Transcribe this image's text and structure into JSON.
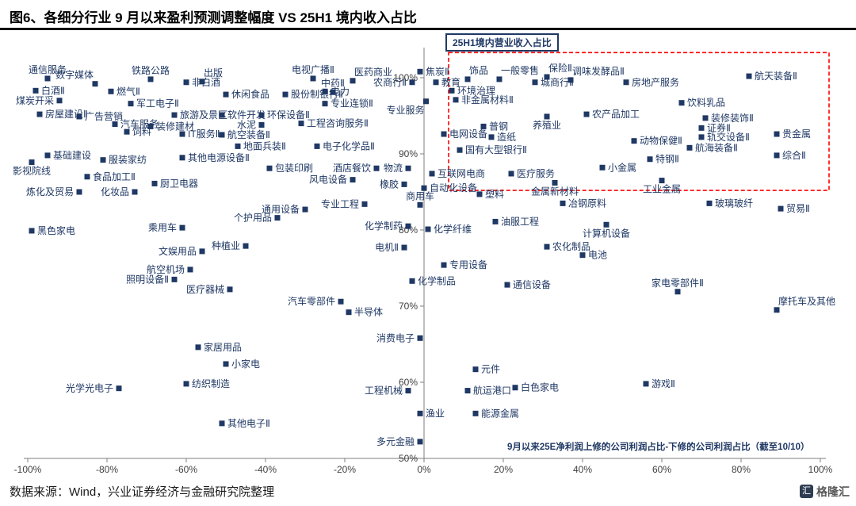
{
  "header": {
    "title": "图6、各细分行业 9 月以来盈利预测调整幅度 VS 25H1 境内收入占比"
  },
  "footer": {
    "source": "数据来源：Wind，兴业证券经济与金融研究院整理",
    "logo_text": "格隆汇",
    "logo_glyph": "汇"
  },
  "chart_data": {
    "type": "scatter",
    "y_axis_title": "25H1境内营业收入占比",
    "x_axis_title": "9月以来25E净利润上修的公司利润占比-下修的公司利润占比（截至10/10）",
    "xlim": [
      -100,
      100
    ],
    "ylim": [
      50,
      101
    ],
    "grid": false,
    "colors": {
      "marker": "#1f3864",
      "label": "#1f3864",
      "axis_text": "#404040",
      "axis_line": "#7f7f7f",
      "highlight_box": "#ff0000"
    },
    "highlight_box": {
      "x_min": 6.2,
      "x_max": 102.2,
      "y_min": 85.2,
      "y_max": 103.3
    },
    "x_ticks": [
      {
        "value": -100,
        "label": "-100%"
      },
      {
        "value": -80,
        "label": "-80%"
      },
      {
        "value": -60,
        "label": "-60%"
      },
      {
        "value": -40,
        "label": "-40%"
      },
      {
        "value": -20,
        "label": "-20%"
      },
      {
        "value": 0,
        "label": "0%"
      },
      {
        "value": 20,
        "label": "20%"
      },
      {
        "value": 40,
        "label": "40%"
      },
      {
        "value": 60,
        "label": "60%"
      },
      {
        "value": 80,
        "label": "80%"
      },
      {
        "value": 100,
        "label": "100%"
      }
    ],
    "y_ticks": [
      {
        "value": 100,
        "label": "100%"
      },
      {
        "value": 90,
        "label": "90%"
      },
      {
        "value": 80,
        "label": "80%"
      },
      {
        "value": 70,
        "label": "70%"
      },
      {
        "value": 60,
        "label": "60%"
      },
      {
        "value": 50,
        "label": "50%"
      }
    ],
    "point_fields": [
      "label",
      "x_pct",
      "y_pct",
      "label_side"
    ],
    "points": [
      [
        "通信服务",
        -95,
        99.9,
        "T"
      ],
      [
        "数字媒体",
        -83,
        99.2,
        "TL"
      ],
      [
        "白酒Ⅱ",
        -98,
        98.3,
        "R"
      ],
      [
        "煤炭开采",
        -92,
        97.0,
        "L"
      ],
      [
        "铁路公路",
        -69,
        99.8,
        "T"
      ],
      [
        "出版",
        -56,
        99.5,
        "TR"
      ],
      [
        "电视广播Ⅱ",
        -28,
        99.9,
        "T"
      ],
      [
        "医药商业",
        -18,
        99.6,
        "TR"
      ],
      [
        "焦炭Ⅱ",
        -1,
        100.8,
        "R"
      ],
      [
        "非白酒",
        -60,
        99.4,
        "R"
      ],
      [
        "农商行Ⅱ",
        -3,
        99.4,
        "L"
      ],
      [
        "燃气Ⅱ",
        -79,
        98.2,
        "R"
      ],
      [
        "中药Ⅱ",
        -23,
        98.1,
        "T"
      ],
      [
        "电力",
        -25,
        98.2,
        "R"
      ],
      [
        "股份制银行Ⅱ",
        -35,
        97.8,
        "R"
      ],
      [
        "休闲食品",
        -50,
        97.8,
        "R"
      ],
      [
        "军工电子Ⅱ",
        -74,
        96.6,
        "R"
      ],
      [
        "专业连锁Ⅱ",
        -25,
        96.6,
        "R"
      ],
      [
        "专业服务",
        0.5,
        96.9,
        "BL"
      ],
      [
        "房屋建设Ⅱ",
        -97,
        95.2,
        "R"
      ],
      [
        "广告营销",
        -87,
        94.9,
        "R"
      ],
      [
        "汽车服务",
        -78,
        93.9,
        "R"
      ],
      [
        "饲料",
        -75,
        92.9,
        "R"
      ],
      [
        "装修建材",
        -69,
        93.6,
        "R"
      ],
      [
        "旅游及景区",
        -63,
        95.1,
        "R"
      ],
      [
        "软件开发",
        -51,
        95.1,
        "R"
      ],
      [
        "环保设备Ⅱ",
        -41,
        95.1,
        "R"
      ],
      [
        "水泥",
        -41,
        93.8,
        "L"
      ],
      [
        "IT服务Ⅱ",
        -61,
        92.6,
        "R"
      ],
      [
        "航空装备Ⅱ",
        -51,
        92.5,
        "R"
      ],
      [
        "工程咨询服务Ⅱ",
        -31,
        94.0,
        "R"
      ],
      [
        "基础建设",
        -95,
        89.8,
        "R"
      ],
      [
        "服装家纺",
        -81,
        89.2,
        "R"
      ],
      [
        "其他电源设备Ⅱ",
        -61,
        89.5,
        "R"
      ],
      [
        "地面兵装Ⅱ",
        -47,
        91.0,
        "R"
      ],
      [
        "电子化学品Ⅱ",
        -27,
        91.0,
        "R"
      ],
      [
        "影视院线",
        -99,
        88.9,
        "B"
      ],
      [
        "食品加工Ⅱ",
        -85,
        87.0,
        "R"
      ],
      [
        "厨卫电器",
        -68,
        86.1,
        "R"
      ],
      [
        "包装印刷",
        -39,
        88.1,
        "R"
      ],
      [
        "酒店餐饮",
        -12,
        88.1,
        "L"
      ],
      [
        "物流",
        -4,
        88.1,
        "L"
      ],
      [
        "炼化及贸易",
        -87,
        85.0,
        "L"
      ],
      [
        "化妆品",
        -73,
        85.0,
        "L"
      ],
      [
        "风电设备",
        -18,
        86.6,
        "L"
      ],
      [
        "橡胶",
        -5,
        86.0,
        "L"
      ],
      [
        "商用车",
        -1,
        83.3,
        "T"
      ],
      [
        "通用设备",
        -30,
        82.7,
        "L"
      ],
      [
        "专业工程",
        -15,
        83.4,
        "L"
      ],
      [
        "黑色家电",
        -99,
        79.9,
        "R"
      ],
      [
        "乘用车",
        -61,
        80.3,
        "L"
      ],
      [
        "个护用品",
        -37,
        81.6,
        "L"
      ],
      [
        "化学制药",
        -4,
        80.5,
        "L"
      ],
      [
        "种植业",
        -45,
        77.9,
        "L"
      ],
      [
        "文娱用品",
        -56,
        77.2,
        "L"
      ],
      [
        "电机Ⅱ",
        -5,
        77.7,
        "L"
      ],
      [
        "航空机场",
        -59,
        74.8,
        "L"
      ],
      [
        "照明设备Ⅱ",
        -63,
        73.5,
        "L"
      ],
      [
        "医疗器械",
        -49,
        72.2,
        "L"
      ],
      [
        "汽车零部件",
        -21,
        70.6,
        "L"
      ],
      [
        "半导体",
        -19,
        69.2,
        "R"
      ],
      [
        "消费电子",
        -1,
        65.8,
        "L"
      ],
      [
        "家居用品",
        -57,
        64.6,
        "R"
      ],
      [
        "小家电",
        -50,
        62.4,
        "R"
      ],
      [
        "光学光电子",
        -77,
        59.2,
        "L"
      ],
      [
        "纺织制造",
        -60,
        59.8,
        "R"
      ],
      [
        "工程机械",
        -4,
        58.9,
        "L"
      ],
      [
        "其他电子Ⅱ",
        -51,
        54.6,
        "R"
      ],
      [
        "渔业",
        -1,
        55.9,
        "R"
      ],
      [
        "多元金融",
        -1,
        52.2,
        "L"
      ],
      [
        "教育",
        3,
        99.4,
        "R"
      ],
      [
        "饰品",
        11,
        99.8,
        "TR"
      ],
      [
        "一般零售",
        19,
        99.8,
        "TR"
      ],
      [
        "保险Ⅱ",
        31,
        100.1,
        "TR"
      ],
      [
        "城商行Ⅱ",
        28,
        99.4,
        "R"
      ],
      [
        "调味发酵品Ⅱ",
        37,
        99.7,
        "TR"
      ],
      [
        "房地产服务",
        51,
        99.4,
        "R"
      ],
      [
        "航天装备Ⅱ",
        82,
        100.2,
        "R"
      ],
      [
        "环境治理",
        7,
        98.3,
        "R"
      ],
      [
        "非金属材料Ⅱ",
        8,
        97.1,
        "R"
      ],
      [
        "饮料乳品",
        65,
        96.7,
        "R"
      ],
      [
        "养殖业",
        31,
        94.9,
        "B"
      ],
      [
        "农产品加工",
        41,
        95.2,
        "R"
      ],
      [
        "装修装饰Ⅱ",
        71,
        94.7,
        "R"
      ],
      [
        "普钢",
        15,
        93.6,
        "R"
      ],
      [
        "证券Ⅱ",
        70,
        93.4,
        "R"
      ],
      [
        "贵金属",
        89,
        92.6,
        "R"
      ],
      [
        "电网设备",
        5,
        92.6,
        "R"
      ],
      [
        "造纸",
        17,
        92.2,
        "R"
      ],
      [
        "轨交设备Ⅱ",
        70,
        92.2,
        "R"
      ],
      [
        "动物保健Ⅱ",
        53,
        91.7,
        "R"
      ],
      [
        "国有大型银行Ⅱ",
        9,
        90.5,
        "R"
      ],
      [
        "航海装备Ⅱ",
        67,
        90.8,
        "R"
      ],
      [
        "综合Ⅱ",
        89,
        89.8,
        "R"
      ],
      [
        "特钢Ⅱ",
        57,
        89.3,
        "R"
      ],
      [
        "小金属",
        45,
        88.2,
        "R"
      ],
      [
        "互联网电商",
        2,
        87.4,
        "R"
      ],
      [
        "医疗服务",
        22,
        87.4,
        "R"
      ],
      [
        "金属新材料",
        33,
        86.2,
        "B"
      ],
      [
        "工业金属",
        60,
        86.5,
        "B"
      ],
      [
        "自动化设备",
        0,
        85.5,
        "R"
      ],
      [
        "塑料",
        14,
        84.7,
        "R"
      ],
      [
        "冶钢原料",
        35,
        83.5,
        "R"
      ],
      [
        "玻璃玻纤",
        72,
        83.5,
        "R"
      ],
      [
        "贸易Ⅱ",
        90,
        82.8,
        "R"
      ],
      [
        "油服工程",
        18,
        81.1,
        "R"
      ],
      [
        "化学纤维",
        1,
        80.1,
        "R"
      ],
      [
        "计算机设备",
        46,
        80.7,
        "B"
      ],
      [
        "农化制品",
        31,
        77.8,
        "R"
      ],
      [
        "电池",
        40,
        76.7,
        "R"
      ],
      [
        "专用设备",
        5,
        75.4,
        "R"
      ],
      [
        "化学制品",
        -3,
        73.3,
        "R"
      ],
      [
        "通信设备",
        21,
        72.8,
        "R"
      ],
      [
        "家电零部件Ⅱ",
        64,
        71.9,
        "T"
      ],
      [
        "摩托车及其他",
        89,
        69.5,
        "TR"
      ],
      [
        "元件",
        13,
        61.7,
        "R"
      ],
      [
        "航运港口",
        11,
        58.9,
        "R"
      ],
      [
        "白色家电",
        23,
        59.3,
        "R"
      ],
      [
        "游戏Ⅱ",
        56,
        59.8,
        "R"
      ],
      [
        "能源金属",
        13,
        55.9,
        "R"
      ]
    ]
  }
}
